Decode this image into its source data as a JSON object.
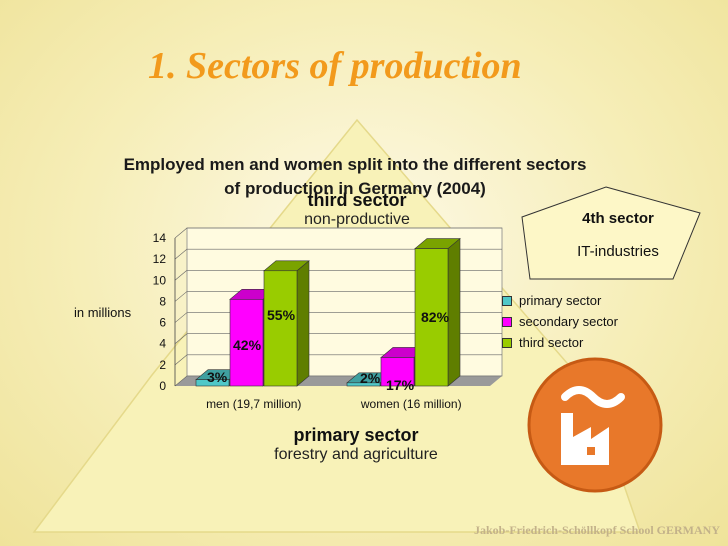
{
  "slide_title": "1. Sectors of production",
  "pyramid": {
    "top_tier": {
      "name": "third sector",
      "description": "non-productive"
    },
    "bottom_tier": {
      "name": "primary sector",
      "description": "forestry and agriculture"
    }
  },
  "pentagon": {
    "name": "4th sector",
    "description": "IT-industries"
  },
  "footer": "Jakob-Friedrich-Schöllkopf School GERMANY",
  "icons": [
    "factory-icon"
  ],
  "colors": {
    "title": "#f29a1c",
    "primary": "#4fc8c8",
    "secondary": "#ff00ff",
    "third": "#99cc00",
    "pyramid": "#f8f2b8",
    "pentagon": "#fdf7c7"
  },
  "chart_data": {
    "type": "bar",
    "title": "Employed men and women split into the different sectors of production in Germany (2004)",
    "ylabel": "in millions",
    "xlabel": "",
    "ylim": [
      0,
      14
    ],
    "yticks": [
      "0",
      "2",
      "4",
      "6",
      "8",
      "10",
      "12",
      "14"
    ],
    "grid": true,
    "legend_position": "right",
    "categories": [
      "men (19,7 million)",
      "women (16 million)"
    ],
    "series": [
      {
        "name": "primary sector",
        "values": [
          0.6,
          0.3
        ],
        "labels": [
          "3%",
          "2%"
        ]
      },
      {
        "name": "secondary sector",
        "values": [
          8.2,
          2.7
        ],
        "labels": [
          "42%",
          "17%"
        ]
      },
      {
        "name": "third sector",
        "values": [
          10.9,
          13.0
        ],
        "labels": [
          "55%",
          "82%"
        ]
      }
    ]
  }
}
